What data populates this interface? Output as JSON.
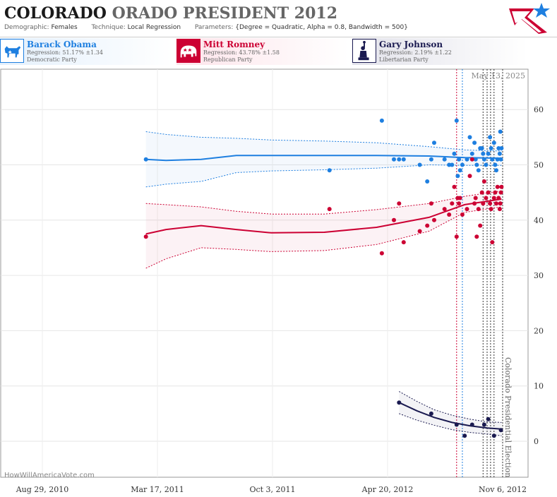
{
  "header": {
    "title_part1": "COLORADO",
    "title_part2": "ORADO",
    "title_part3": "PRESIDENT 2012",
    "demographic_label": "Demographic:",
    "demographic_value": "Females",
    "technique_label": "Technique:",
    "technique_value": "Local Regression",
    "parameters_label": "Parameters:",
    "parameters_value": "{Degree = Quadratic, Alpha = 0.8, Bandwidth = 500}",
    "logo_icon": "star-flag-logo-icon"
  },
  "candidates": [
    {
      "name": "Barack Obama",
      "regression": "Regression: 51.17% ±1.34",
      "party": "Democratic Party",
      "color": "#1e7fe0",
      "icon": "donkey-icon"
    },
    {
      "name": "Mitt Romney",
      "regression": "Regression: 43.78% ±1.58",
      "party": "Republican Party",
      "color": "#cc0033",
      "icon": "elephant-icon"
    },
    {
      "name": "Gary Johnson",
      "regression": "Regression: 2.19% ±1.22",
      "party": "Libertarian Party",
      "color": "#1a1a50",
      "icon": "statue-of-liberty-icon"
    }
  ],
  "watermark": "HowWillAmericaVote.com",
  "chart_data": {
    "type": "scatter",
    "current_date_label": "May 13, 2025",
    "event_label": "Colorado Presidential Election",
    "x_ticks": [
      "Aug 29, 2010",
      "Mar 17, 2011",
      "Oct 3, 2011",
      "Apr 20, 2012",
      "Nov 6, 2012"
    ],
    "y_ticks": [
      0,
      10,
      20,
      30,
      40,
      50,
      60
    ],
    "ylim": [
      -5,
      66
    ],
    "xlim": [
      "2010-08-01",
      "2012-11-10"
    ],
    "series": [
      {
        "name": "Barack Obama",
        "color": "#1e7fe0",
        "points": [
          [
            "2011-02-25",
            51
          ],
          [
            "2012-01-10",
            49
          ],
          [
            "2012-04-10",
            58
          ],
          [
            "2012-05-01",
            51
          ],
          [
            "2012-05-10",
            51
          ],
          [
            "2012-05-18",
            51
          ],
          [
            "2012-06-15",
            50
          ],
          [
            "2012-06-28",
            47
          ],
          [
            "2012-07-05",
            51
          ],
          [
            "2012-07-10",
            54
          ],
          [
            "2012-07-28",
            51
          ],
          [
            "2012-08-05",
            50
          ],
          [
            "2012-08-10",
            50
          ],
          [
            "2012-08-14",
            52
          ],
          [
            "2012-08-18",
            58
          ],
          [
            "2012-08-20",
            48
          ],
          [
            "2012-08-22",
            51
          ],
          [
            "2012-08-24",
            49
          ],
          [
            "2012-08-28",
            50
          ],
          [
            "2012-09-05",
            51
          ],
          [
            "2012-09-10",
            55
          ],
          [
            "2012-09-14",
            52
          ],
          [
            "2012-09-18",
            54
          ],
          [
            "2012-09-20",
            51
          ],
          [
            "2012-09-22",
            50
          ],
          [
            "2012-09-25",
            49
          ],
          [
            "2012-09-28",
            53
          ],
          [
            "2012-10-01",
            53
          ],
          [
            "2012-10-03",
            52
          ],
          [
            "2012-10-05",
            51
          ],
          [
            "2012-10-08",
            50
          ],
          [
            "2012-10-12",
            52
          ],
          [
            "2012-10-15",
            55
          ],
          [
            "2012-10-17",
            53
          ],
          [
            "2012-10-19",
            51
          ],
          [
            "2012-10-22",
            54
          ],
          [
            "2012-10-24",
            50
          ],
          [
            "2012-10-26",
            49
          ],
          [
            "2012-10-28",
            51
          ],
          [
            "2012-10-30",
            53
          ],
          [
            "2012-11-01",
            52
          ],
          [
            "2012-11-02",
            56
          ],
          [
            "2012-11-03",
            51
          ],
          [
            "2012-11-04",
            53
          ]
        ],
        "trend": [
          [
            "2011-02-25",
            51.0
          ],
          [
            "2011-04-01",
            50.8
          ],
          [
            "2011-06-01",
            51.0
          ],
          [
            "2011-08-01",
            51.7
          ],
          [
            "2011-10-01",
            51.7
          ],
          [
            "2012-01-01",
            51.7
          ],
          [
            "2012-04-01",
            51.7
          ],
          [
            "2012-07-01",
            51.6
          ],
          [
            "2012-09-01",
            51.3
          ],
          [
            "2012-11-04",
            51.2
          ]
        ],
        "band_upper": [
          [
            "2011-02-25",
            56.0
          ],
          [
            "2011-04-01",
            55.5
          ],
          [
            "2011-06-01",
            55.0
          ],
          [
            "2011-08-01",
            54.8
          ],
          [
            "2011-10-01",
            54.5
          ],
          [
            "2012-01-01",
            54.3
          ],
          [
            "2012-04-01",
            54.0
          ],
          [
            "2012-07-01",
            53.3
          ],
          [
            "2012-09-01",
            52.7
          ],
          [
            "2012-11-04",
            52.5
          ]
        ],
        "band_lower": [
          [
            "2011-02-25",
            46.0
          ],
          [
            "2011-04-01",
            46.5
          ],
          [
            "2011-06-01",
            47.0
          ],
          [
            "2011-08-01",
            48.6
          ],
          [
            "2011-10-01",
            48.9
          ],
          [
            "2012-01-01",
            49.1
          ],
          [
            "2012-04-01",
            49.4
          ],
          [
            "2012-07-01",
            50.0
          ],
          [
            "2012-09-01",
            49.9
          ],
          [
            "2012-11-04",
            49.9
          ]
        ]
      },
      {
        "name": "Mitt Romney",
        "color": "#cc0033",
        "points": [
          [
            "2011-02-25",
            37
          ],
          [
            "2012-01-10",
            42
          ],
          [
            "2012-04-10",
            34
          ],
          [
            "2012-05-01",
            40
          ],
          [
            "2012-05-10",
            43
          ],
          [
            "2012-05-18",
            36
          ],
          [
            "2012-06-15",
            38
          ],
          [
            "2012-06-28",
            39
          ],
          [
            "2012-07-05",
            43
          ],
          [
            "2012-07-10",
            40
          ],
          [
            "2012-07-28",
            42
          ],
          [
            "2012-08-05",
            41
          ],
          [
            "2012-08-10",
            43
          ],
          [
            "2012-08-14",
            46
          ],
          [
            "2012-08-18",
            37
          ],
          [
            "2012-08-20",
            44
          ],
          [
            "2012-08-22",
            43
          ],
          [
            "2012-08-24",
            44
          ],
          [
            "2012-08-28",
            41
          ],
          [
            "2012-09-05",
            42
          ],
          [
            "2012-09-10",
            48
          ],
          [
            "2012-09-14",
            51
          ],
          [
            "2012-09-18",
            43
          ],
          [
            "2012-09-20",
            44
          ],
          [
            "2012-09-22",
            37
          ],
          [
            "2012-09-25",
            42
          ],
          [
            "2012-09-28",
            39
          ],
          [
            "2012-10-01",
            45
          ],
          [
            "2012-10-03",
            43
          ],
          [
            "2012-10-05",
            47
          ],
          [
            "2012-10-08",
            44
          ],
          [
            "2012-10-12",
            45
          ],
          [
            "2012-10-15",
            43
          ],
          [
            "2012-10-17",
            42
          ],
          [
            "2012-10-19",
            36
          ],
          [
            "2012-10-22",
            44
          ],
          [
            "2012-10-24",
            45
          ],
          [
            "2012-10-26",
            43
          ],
          [
            "2012-10-28",
            46
          ],
          [
            "2012-10-30",
            44
          ],
          [
            "2012-11-01",
            42
          ],
          [
            "2012-11-02",
            43
          ],
          [
            "2012-11-03",
            45
          ],
          [
            "2012-11-04",
            46
          ]
        ],
        "trend": [
          [
            "2011-02-25",
            37.5
          ],
          [
            "2011-04-01",
            38.3
          ],
          [
            "2011-06-01",
            39.0
          ],
          [
            "2011-08-01",
            38.3
          ],
          [
            "2011-10-01",
            37.7
          ],
          [
            "2012-01-01",
            37.8
          ],
          [
            "2012-04-01",
            38.7
          ],
          [
            "2012-07-01",
            40.5
          ],
          [
            "2012-09-01",
            42.8
          ],
          [
            "2012-11-04",
            43.8
          ]
        ],
        "band_upper": [
          [
            "2011-02-25",
            43.0
          ],
          [
            "2011-04-01",
            42.8
          ],
          [
            "2011-06-01",
            42.4
          ],
          [
            "2011-08-01",
            41.6
          ],
          [
            "2011-10-01",
            41.1
          ],
          [
            "2012-01-01",
            41.1
          ],
          [
            "2012-04-01",
            41.9
          ],
          [
            "2012-07-01",
            43.0
          ],
          [
            "2012-09-01",
            44.3
          ],
          [
            "2012-11-04",
            45.3
          ]
        ],
        "band_lower": [
          [
            "2011-02-25",
            31.3
          ],
          [
            "2011-04-01",
            33.0
          ],
          [
            "2011-06-01",
            35.0
          ],
          [
            "2011-08-01",
            34.7
          ],
          [
            "2011-10-01",
            34.3
          ],
          [
            "2012-01-01",
            34.5
          ],
          [
            "2012-04-01",
            35.6
          ],
          [
            "2012-07-01",
            38.0
          ],
          [
            "2012-09-01",
            41.4
          ],
          [
            "2012-11-04",
            42.4
          ]
        ]
      },
      {
        "name": "Gary Johnson",
        "color": "#1a1a50",
        "points": [
          [
            "2012-05-10",
            7
          ],
          [
            "2012-07-05",
            5
          ],
          [
            "2012-08-18",
            3
          ],
          [
            "2012-09-01",
            1
          ],
          [
            "2012-09-14",
            3
          ],
          [
            "2012-10-05",
            3
          ],
          [
            "2012-10-12",
            4
          ],
          [
            "2012-10-22",
            1
          ],
          [
            "2012-11-03",
            2
          ]
        ],
        "trend": [
          [
            "2012-05-10",
            7.0
          ],
          [
            "2012-06-10",
            5.5
          ],
          [
            "2012-07-10",
            4.3
          ],
          [
            "2012-08-10",
            3.4
          ],
          [
            "2012-09-10",
            2.8
          ],
          [
            "2012-10-10",
            2.4
          ],
          [
            "2012-11-04",
            2.2
          ]
        ],
        "band_upper": [
          [
            "2012-05-10",
            9.0
          ],
          [
            "2012-06-10",
            7.2
          ],
          [
            "2012-07-10",
            5.7
          ],
          [
            "2012-08-10",
            4.7
          ],
          [
            "2012-09-10",
            4.0
          ],
          [
            "2012-10-10",
            3.5
          ],
          [
            "2012-11-04",
            3.4
          ]
        ],
        "band_lower": [
          [
            "2012-05-10",
            5.0
          ],
          [
            "2012-06-10",
            3.8
          ],
          [
            "2012-07-10",
            2.9
          ],
          [
            "2012-08-10",
            2.1
          ],
          [
            "2012-09-10",
            1.6
          ],
          [
            "2012-10-10",
            1.3
          ],
          [
            "2012-11-04",
            1.0
          ]
        ]
      }
    ],
    "event_lines": [
      {
        "date": "2012-08-18",
        "color": "#cc0033"
      },
      {
        "date": "2012-08-28",
        "color": "#1e7fe0"
      },
      {
        "date": "2012-10-03",
        "color": "#333333"
      },
      {
        "date": "2012-10-10",
        "color": "#333333"
      },
      {
        "date": "2012-10-16",
        "color": "#333333"
      },
      {
        "date": "2012-10-22",
        "color": "#333333"
      },
      {
        "date": "2012-11-06",
        "color": "#333333"
      }
    ]
  }
}
